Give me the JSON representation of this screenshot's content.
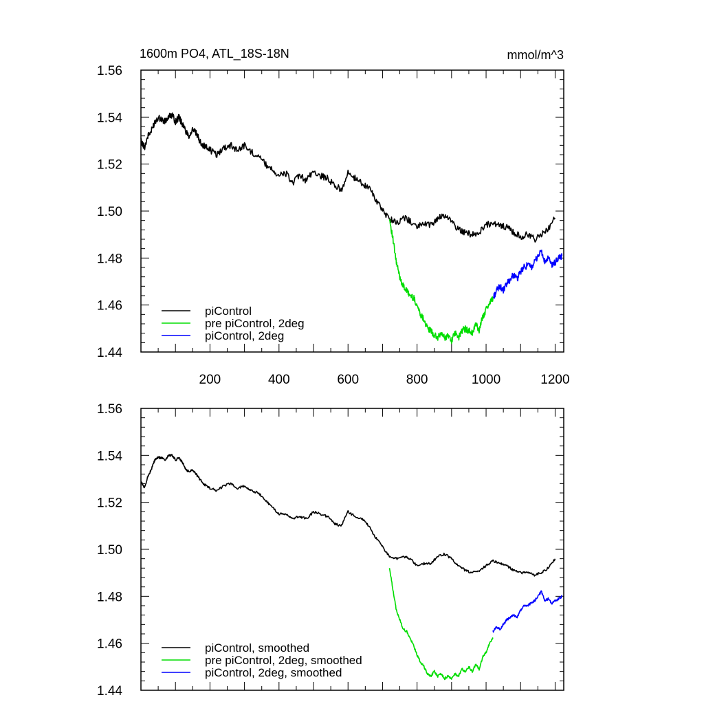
{
  "chart_data": [
    {
      "type": "line",
      "title": "1600m PO4, ATL_18S-18N",
      "units": "mmol/m^3",
      "xlim": [
        0,
        1225
      ],
      "ylim": [
        1.44,
        1.56
      ],
      "xticks": [
        200,
        400,
        600,
        800,
        1000,
        1200
      ],
      "xtick_labels": [
        "200",
        "400",
        "600",
        "800",
        "1000",
        "1200"
      ],
      "yticks": [
        1.44,
        1.46,
        1.48,
        1.5,
        1.52,
        1.54,
        1.56
      ],
      "ytick_labels": [
        "1.44",
        "1.46",
        "1.48",
        "1.50",
        "1.52",
        "1.54",
        "1.56"
      ],
      "legend": [
        "piControl",
        "pre piControl, 2deg",
        "piControl, 2deg"
      ],
      "legend_position": "bottom-left",
      "series": [
        {
          "name": "piControl",
          "color": "#000000",
          "x": [
            0,
            10,
            20,
            30,
            40,
            50,
            60,
            70,
            80,
            90,
            100,
            110,
            120,
            130,
            140,
            150,
            160,
            170,
            180,
            190,
            200,
            220,
            240,
            260,
            280,
            300,
            320,
            340,
            360,
            380,
            400,
            420,
            440,
            460,
            480,
            500,
            520,
            540,
            560,
            580,
            600,
            620,
            640,
            660,
            680,
            700,
            720,
            740,
            760,
            780,
            800,
            820,
            840,
            860,
            880,
            900,
            920,
            940,
            960,
            980,
            1000,
            1020,
            1040,
            1060,
            1080,
            1100,
            1120,
            1140,
            1160,
            1180,
            1200
          ],
          "y": [
            1.53,
            1.527,
            1.532,
            1.534,
            1.538,
            1.54,
            1.539,
            1.538,
            1.54,
            1.541,
            1.538,
            1.54,
            1.537,
            1.534,
            1.532,
            1.535,
            1.533,
            1.53,
            1.528,
            1.527,
            1.526,
            1.524,
            1.527,
            1.528,
            1.526,
            1.528,
            1.525,
            1.524,
            1.52,
            1.518,
            1.515,
            1.516,
            1.512,
            1.515,
            1.513,
            1.517,
            1.515,
            1.514,
            1.511,
            1.509,
            1.516,
            1.514,
            1.512,
            1.51,
            1.505,
            1.5,
            1.497,
            1.495,
            1.497,
            1.496,
            1.493,
            1.495,
            1.494,
            1.497,
            1.498,
            1.496,
            1.492,
            1.491,
            1.49,
            1.491,
            1.494,
            1.495,
            1.494,
            1.493,
            1.491,
            1.489,
            1.49,
            1.488,
            1.49,
            1.492,
            1.497
          ]
        },
        {
          "name": "pre piControl, 2deg",
          "color": "#00dd00",
          "x": [
            720,
            730,
            740,
            750,
            760,
            770,
            780,
            790,
            800,
            810,
            820,
            830,
            840,
            850,
            860,
            870,
            880,
            890,
            900,
            910,
            920,
            930,
            940,
            950,
            960,
            970,
            980,
            990,
            1000,
            1010,
            1020
          ],
          "y": [
            1.497,
            1.488,
            1.478,
            1.472,
            1.468,
            1.466,
            1.464,
            1.463,
            1.46,
            1.456,
            1.454,
            1.45,
            1.449,
            1.447,
            1.446,
            1.448,
            1.446,
            1.447,
            1.445,
            1.448,
            1.446,
            1.449,
            1.45,
            1.449,
            1.448,
            1.452,
            1.449,
            1.455,
            1.458,
            1.461,
            1.463
          ]
        },
        {
          "name": "piControl, 2deg",
          "color": "#0000ff",
          "x": [
            1020,
            1030,
            1040,
            1050,
            1060,
            1070,
            1080,
            1090,
            1100,
            1110,
            1120,
            1130,
            1140,
            1150,
            1160,
            1170,
            1180,
            1190,
            1200,
            1210,
            1220
          ],
          "y": [
            1.463,
            1.466,
            1.468,
            1.466,
            1.469,
            1.471,
            1.473,
            1.471,
            1.474,
            1.476,
            1.477,
            1.476,
            1.478,
            1.481,
            1.483,
            1.478,
            1.48,
            1.477,
            1.478,
            1.48,
            1.481
          ]
        }
      ]
    },
    {
      "type": "line",
      "title": "",
      "xlim": [
        0,
        1225
      ],
      "ylim": [
        1.44,
        1.56
      ],
      "xticks": [
        200,
        400,
        600,
        800,
        1000,
        1200
      ],
      "yticks": [
        1.44,
        1.46,
        1.48,
        1.5,
        1.52,
        1.54,
        1.56
      ],
      "ytick_labels": [
        "1.44",
        "1.46",
        "1.48",
        "1.50",
        "1.52",
        "1.54",
        "1.56"
      ],
      "legend": [
        "piControl, smoothed",
        "pre piControl, 2deg, smoothed",
        "piControl, 2deg, smoothed"
      ],
      "legend_position": "bottom-left",
      "series": [
        {
          "name": "piControl, smoothed",
          "color": "#000000",
          "x": [
            0,
            10,
            20,
            30,
            40,
            50,
            60,
            70,
            80,
            90,
            100,
            110,
            120,
            130,
            140,
            150,
            160,
            170,
            180,
            190,
            200,
            220,
            240,
            260,
            280,
            300,
            320,
            340,
            360,
            380,
            400,
            420,
            440,
            460,
            480,
            500,
            520,
            540,
            560,
            580,
            600,
            620,
            640,
            660,
            680,
            700,
            720,
            740,
            760,
            780,
            800,
            820,
            840,
            860,
            880,
            900,
            920,
            940,
            960,
            980,
            1000,
            1020,
            1040,
            1060,
            1080,
            1100,
            1120,
            1140,
            1160,
            1180,
            1200
          ],
          "y": [
            1.529,
            1.526,
            1.531,
            1.534,
            1.538,
            1.539,
            1.539,
            1.538,
            1.54,
            1.54,
            1.538,
            1.539,
            1.537,
            1.534,
            1.533,
            1.534,
            1.532,
            1.53,
            1.528,
            1.527,
            1.526,
            1.525,
            1.527,
            1.528,
            1.526,
            1.527,
            1.525,
            1.524,
            1.521,
            1.518,
            1.515,
            1.515,
            1.513,
            1.514,
            1.513,
            1.516,
            1.515,
            1.514,
            1.511,
            1.51,
            1.516,
            1.514,
            1.513,
            1.51,
            1.505,
            1.501,
            1.497,
            1.496,
            1.497,
            1.496,
            1.493,
            1.494,
            1.494,
            1.497,
            1.498,
            1.496,
            1.493,
            1.491,
            1.49,
            1.491,
            1.493,
            1.495,
            1.494,
            1.493,
            1.491,
            1.49,
            1.49,
            1.489,
            1.49,
            1.492,
            1.496
          ]
        },
        {
          "name": "pre piControl, 2deg, smoothed",
          "color": "#00dd00",
          "x": [
            720,
            730,
            740,
            750,
            760,
            770,
            780,
            790,
            800,
            810,
            820,
            830,
            840,
            850,
            860,
            870,
            880,
            890,
            900,
            910,
            920,
            930,
            940,
            950,
            960,
            970,
            980,
            990,
            1000,
            1010,
            1020
          ],
          "y": [
            1.492,
            1.483,
            1.474,
            1.47,
            1.466,
            1.465,
            1.462,
            1.459,
            1.455,
            1.452,
            1.45,
            1.447,
            1.446,
            1.448,
            1.446,
            1.447,
            1.445,
            1.446,
            1.445,
            1.447,
            1.446,
            1.449,
            1.448,
            1.45,
            1.448,
            1.451,
            1.449,
            1.454,
            1.456,
            1.46,
            1.462
          ]
        },
        {
          "name": "piControl, 2deg, smoothed",
          "color": "#0000ff",
          "x": [
            1020,
            1030,
            1040,
            1050,
            1060,
            1070,
            1080,
            1090,
            1100,
            1110,
            1120,
            1130,
            1140,
            1150,
            1160,
            1170,
            1180,
            1190,
            1200,
            1210,
            1220
          ],
          "y": [
            1.465,
            1.467,
            1.466,
            1.468,
            1.47,
            1.471,
            1.472,
            1.471,
            1.474,
            1.476,
            1.476,
            1.477,
            1.478,
            1.48,
            1.482,
            1.478,
            1.479,
            1.477,
            1.478,
            1.479,
            1.48
          ]
        }
      ]
    }
  ]
}
